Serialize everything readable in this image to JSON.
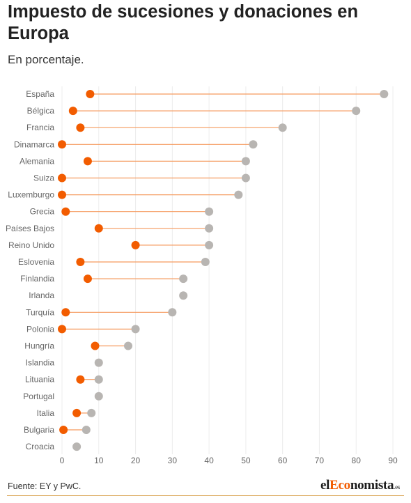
{
  "header": {
    "title": "Impuesto de sucesiones y donaciones en Europa",
    "subtitle": "En porcentaje."
  },
  "footer": {
    "source": "Fuente: EY y PwC.",
    "brand": {
      "part1": "el",
      "part2": "Eco",
      "part3": "nomista",
      "part4": ".es"
    }
  },
  "colors": {
    "min_dot": "#f25c00",
    "max_dot": "#b8b5b2",
    "connector": "#f59a5e",
    "grid": "#ececec",
    "label": "#666666",
    "brand_accent": "#f25c00",
    "footer_rule": "#d9a250"
  },
  "chart_data": {
    "type": "dumbbell",
    "title": "Impuesto de sucesiones y donaciones en Europa",
    "subtitle": "En porcentaje.",
    "categories": [
      "España",
      "Bélgica",
      "Francia",
      "Dinamarca",
      "Alemania",
      "Suiza",
      "Luxemburgo",
      "Grecia",
      "Países Bajos",
      "Reino Unido",
      "Eslovenia",
      "Finlandia",
      "Irlanda",
      "Turquía",
      "Polonia",
      "Hungría",
      "Islandia",
      "Lituania",
      "Portugal",
      "Italia",
      "Bulgaria",
      "Croacia"
    ],
    "series": [
      {
        "values": [
          7.65,
          3,
          5,
          0,
          7,
          0,
          0,
          1,
          10,
          20,
          5,
          7,
          33,
          1,
          0,
          9,
          10,
          5,
          10,
          4,
          0.4,
          4
        ]
      },
      {
        "values": [
          87.6,
          80,
          60,
          52,
          50,
          50,
          48,
          40,
          40,
          40,
          39,
          33,
          33,
          30,
          20,
          18,
          10,
          10,
          10,
          8,
          6.6,
          4
        ]
      }
    ],
    "xlim": [
      0,
      90
    ],
    "xticks": [
      0,
      10,
      20,
      30,
      40,
      50,
      60,
      70,
      80,
      90
    ],
    "xlabel": "",
    "ylabel": "",
    "grid": "vertical"
  }
}
